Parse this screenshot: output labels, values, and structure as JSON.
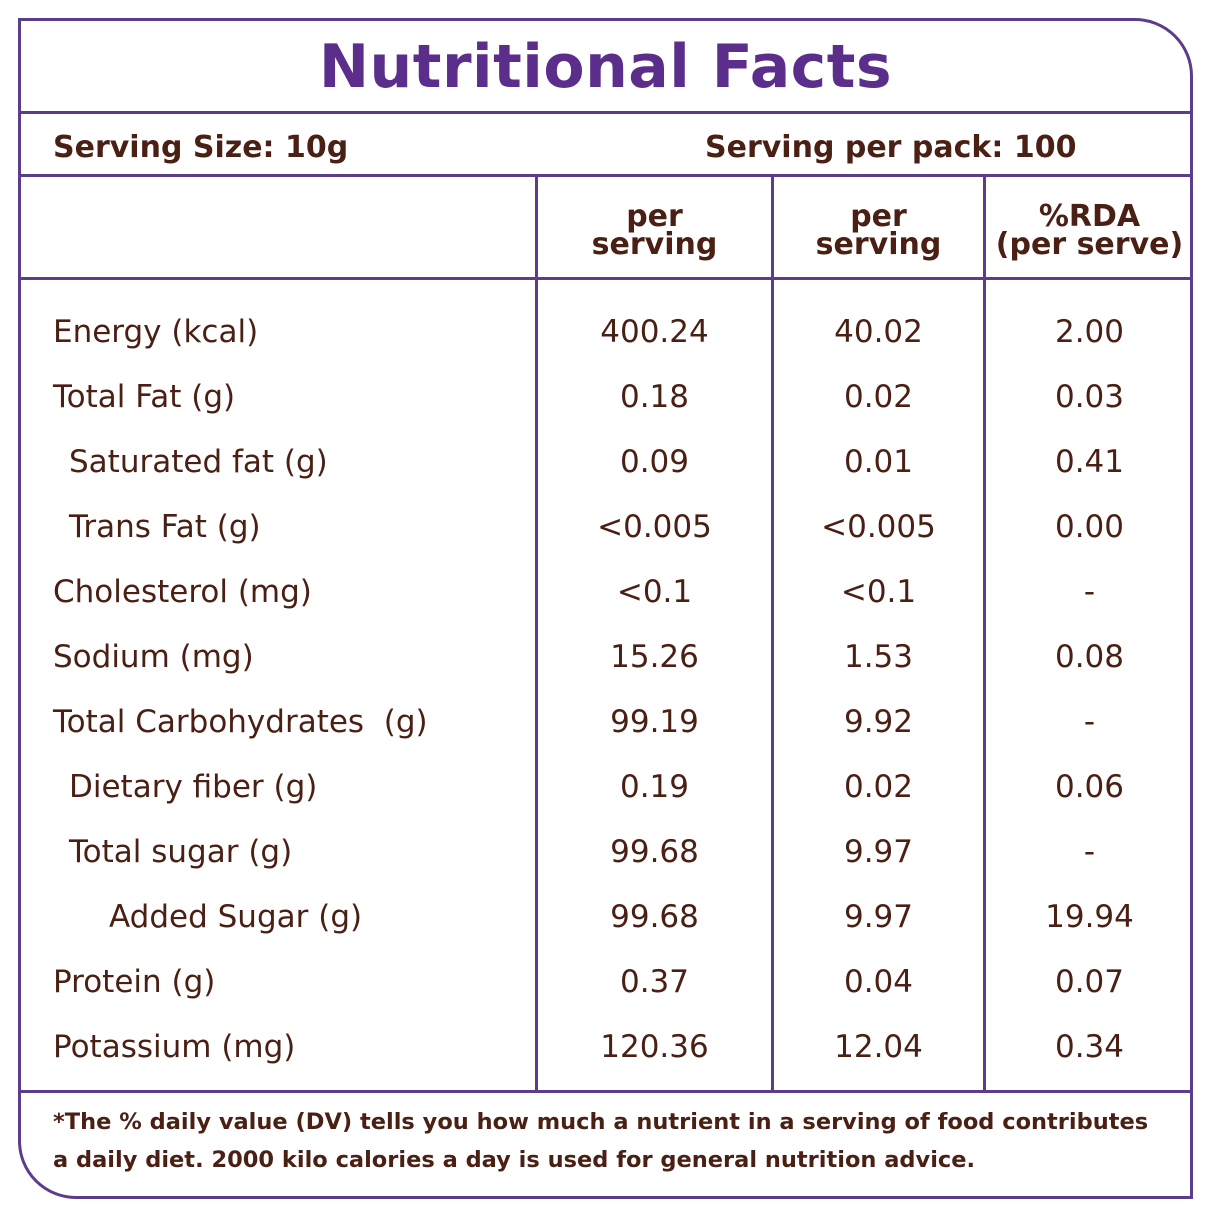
{
  "title": "Nutritional Facts",
  "serving_size": "Serving Size: 10g",
  "serving_per_pack": "Serving per pack: 100",
  "columns": [
    {
      "line1": "per",
      "line2": "serving"
    },
    {
      "line1": "per",
      "line2": "serving"
    },
    {
      "line1": "%RDA",
      "line2": "(per serve)"
    }
  ],
  "rows": [
    {
      "label": "Energy (kcal)",
      "v1": "400.24",
      "v2": "40.02",
      "v3": "2.00"
    },
    {
      "label": "Total Fat (g)",
      "v1": "0.18",
      "v2": "0.02",
      "v3": "0.03"
    },
    {
      "label": "Saturated fat (g)",
      "v1": "0.09",
      "v2": "0.01",
      "v3": "0.41"
    },
    {
      "label": "Trans Fat (g)",
      "v1": "<0.005",
      "v2": "<0.005",
      "v3": "0.00"
    },
    {
      "label": "Cholesterol (mg)",
      "v1": "<0.1",
      "v2": "<0.1",
      "v3": "-"
    },
    {
      "label": "Sodium (mg)",
      "v1": "15.26",
      "v2": "1.53",
      "v3": "0.08"
    },
    {
      "label": "Total Carbohydrates  (g)",
      "v1": "99.19",
      "v2": "9.92",
      "v3": "-"
    },
    {
      "label": "Dietary fiber (g)",
      "v1": "0.19",
      "v2": "0.02",
      "v3": "0.06"
    },
    {
      "label": "Total sugar (g)",
      "v1": "99.68",
      "v2": "9.97",
      "v3": "-"
    },
    {
      "label": "Added Sugar (g)",
      "v1": "99.68",
      "v2": "9.97",
      "v3": "19.94"
    },
    {
      "label": "Protein (g)",
      "v1": "0.37",
      "v2": "0.04",
      "v3": "0.07"
    },
    {
      "label": "Potassium (mg)",
      "v1": "120.36",
      "v2": "12.04",
      "v3": "0.34"
    }
  ],
  "footnote": "*The % daily value (DV) tells you how much a nutrient in a serving of food contributes a daily diet. 2000 kilo calories a day is used for general nutrition advice.",
  "colors": {
    "border": "#5b3d8c",
    "title": "#5b2e8c",
    "text": "#4a1f14"
  }
}
